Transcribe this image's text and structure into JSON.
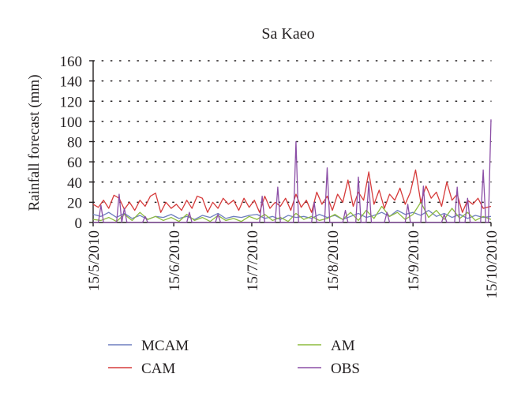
{
  "chart_data": {
    "type": "line",
    "title": "Sa Kaeo",
    "xlabel": "",
    "ylabel": "Rainfall forecast (mm)",
    "ylim": [
      0,
      160
    ],
    "yticks": [
      0,
      20,
      40,
      60,
      80,
      100,
      120,
      140,
      160
    ],
    "xlim": [
      "2010-05-15",
      "2010-10-15"
    ],
    "xticks": [
      {
        "date": "2010-05-15",
        "label": "15/5/2010"
      },
      {
        "date": "2010-06-15",
        "label": "15/6/2010"
      },
      {
        "date": "2010-07-15",
        "label": "15/7/2010"
      },
      {
        "date": "2010-08-15",
        "label": "15/8/2010"
      },
      {
        "date": "2010-09-15",
        "label": "15/9/2010"
      },
      {
        "date": "2010-10-15",
        "label": "15/10/2010"
      }
    ],
    "grid": "horizontal dotted",
    "legend_position": "bottom",
    "series": [
      {
        "name": "MCAM",
        "color": "#6f7fbf",
        "points": [
          [
            "2010-05-15",
            8
          ],
          [
            "2010-05-18",
            6
          ],
          [
            "2010-05-21",
            10
          ],
          [
            "2010-05-24",
            5
          ],
          [
            "2010-05-27",
            9
          ],
          [
            "2010-05-30",
            4
          ],
          [
            "2010-06-02",
            7
          ],
          [
            "2010-06-05",
            3
          ],
          [
            "2010-06-08",
            6
          ],
          [
            "2010-06-11",
            5
          ],
          [
            "2010-06-14",
            8
          ],
          [
            "2010-06-17",
            4
          ],
          [
            "2010-06-20",
            6
          ],
          [
            "2010-06-23",
            3
          ],
          [
            "2010-06-26",
            7
          ],
          [
            "2010-06-29",
            5
          ],
          [
            "2010-07-02",
            9
          ],
          [
            "2010-07-05",
            4
          ],
          [
            "2010-07-08",
            6
          ],
          [
            "2010-07-11",
            5
          ],
          [
            "2010-07-14",
            7
          ],
          [
            "2010-07-17",
            8
          ],
          [
            "2010-07-20",
            4
          ],
          [
            "2010-07-23",
            6
          ],
          [
            "2010-07-26",
            3
          ],
          [
            "2010-07-29",
            7
          ],
          [
            "2010-08-01",
            5
          ],
          [
            "2010-08-04",
            6
          ],
          [
            "2010-08-07",
            4
          ],
          [
            "2010-08-10",
            8
          ],
          [
            "2010-08-13",
            5
          ],
          [
            "2010-08-16",
            7
          ],
          [
            "2010-08-19",
            3
          ],
          [
            "2010-08-22",
            6
          ],
          [
            "2010-08-25",
            9
          ],
          [
            "2010-08-28",
            5
          ],
          [
            "2010-08-31",
            7
          ],
          [
            "2010-09-03",
            10
          ],
          [
            "2010-09-06",
            6
          ],
          [
            "2010-09-09",
            12
          ],
          [
            "2010-09-12",
            8
          ],
          [
            "2010-09-15",
            10
          ],
          [
            "2010-09-18",
            7
          ],
          [
            "2010-09-21",
            12
          ],
          [
            "2010-09-24",
            6
          ],
          [
            "2010-09-27",
            9
          ],
          [
            "2010-09-30",
            5
          ],
          [
            "2010-10-03",
            8
          ],
          [
            "2010-10-06",
            4
          ],
          [
            "2010-10-09",
            7
          ],
          [
            "2010-10-12",
            5
          ],
          [
            "2010-10-15",
            6
          ]
        ]
      },
      {
        "name": "CAM",
        "color": "#d63b3b",
        "points": [
          [
            "2010-05-15",
            18
          ],
          [
            "2010-05-17",
            15
          ],
          [
            "2010-05-19",
            22
          ],
          [
            "2010-05-21",
            14
          ],
          [
            "2010-05-23",
            27
          ],
          [
            "2010-05-25",
            24
          ],
          [
            "2010-05-27",
            13
          ],
          [
            "2010-05-29",
            20
          ],
          [
            "2010-05-31",
            12
          ],
          [
            "2010-06-02",
            22
          ],
          [
            "2010-06-04",
            16
          ],
          [
            "2010-06-06",
            26
          ],
          [
            "2010-06-08",
            29
          ],
          [
            "2010-06-10",
            10
          ],
          [
            "2010-06-12",
            20
          ],
          [
            "2010-06-14",
            14
          ],
          [
            "2010-06-16",
            18
          ],
          [
            "2010-06-18",
            12
          ],
          [
            "2010-06-20",
            22
          ],
          [
            "2010-06-22",
            14
          ],
          [
            "2010-06-24",
            26
          ],
          [
            "2010-06-26",
            24
          ],
          [
            "2010-06-28",
            10
          ],
          [
            "2010-06-30",
            20
          ],
          [
            "2010-07-02",
            14
          ],
          [
            "2010-07-04",
            24
          ],
          [
            "2010-07-06",
            18
          ],
          [
            "2010-07-08",
            22
          ],
          [
            "2010-07-10",
            12
          ],
          [
            "2010-07-12",
            24
          ],
          [
            "2010-07-14",
            15
          ],
          [
            "2010-07-16",
            22
          ],
          [
            "2010-07-18",
            10
          ],
          [
            "2010-07-20",
            26
          ],
          [
            "2010-07-22",
            14
          ],
          [
            "2010-07-24",
            20
          ],
          [
            "2010-07-26",
            16
          ],
          [
            "2010-07-28",
            24
          ],
          [
            "2010-07-30",
            12
          ],
          [
            "2010-08-01",
            28
          ],
          [
            "2010-08-03",
            15
          ],
          [
            "2010-08-05",
            22
          ],
          [
            "2010-08-07",
            10
          ],
          [
            "2010-08-09",
            30
          ],
          [
            "2010-08-11",
            18
          ],
          [
            "2010-08-13",
            26
          ],
          [
            "2010-08-15",
            12
          ],
          [
            "2010-08-17",
            28
          ],
          [
            "2010-08-19",
            20
          ],
          [
            "2010-08-21",
            42
          ],
          [
            "2010-08-23",
            16
          ],
          [
            "2010-08-25",
            30
          ],
          [
            "2010-08-27",
            22
          ],
          [
            "2010-08-29",
            50
          ],
          [
            "2010-08-31",
            18
          ],
          [
            "2010-09-02",
            32
          ],
          [
            "2010-09-04",
            14
          ],
          [
            "2010-09-06",
            28
          ],
          [
            "2010-09-08",
            22
          ],
          [
            "2010-09-10",
            34
          ],
          [
            "2010-09-12",
            18
          ],
          [
            "2010-09-14",
            30
          ],
          [
            "2010-09-16",
            52
          ],
          [
            "2010-09-18",
            20
          ],
          [
            "2010-09-20",
            36
          ],
          [
            "2010-09-22",
            24
          ],
          [
            "2010-09-24",
            30
          ],
          [
            "2010-09-26",
            16
          ],
          [
            "2010-09-28",
            40
          ],
          [
            "2010-09-30",
            22
          ],
          [
            "2010-10-02",
            28
          ],
          [
            "2010-10-04",
            10
          ],
          [
            "2010-10-06",
            22
          ],
          [
            "2010-10-08",
            18
          ],
          [
            "2010-10-10",
            24
          ],
          [
            "2010-10-12",
            14
          ],
          [
            "2010-10-15",
            16
          ]
        ]
      },
      {
        "name": "AM",
        "color": "#8dbb3f",
        "points": [
          [
            "2010-05-15",
            3
          ],
          [
            "2010-05-18",
            2
          ],
          [
            "2010-05-21",
            5
          ],
          [
            "2010-05-24",
            1
          ],
          [
            "2010-05-27",
            8
          ],
          [
            "2010-05-30",
            2
          ],
          [
            "2010-06-02",
            10
          ],
          [
            "2010-06-05",
            3
          ],
          [
            "2010-06-08",
            6
          ],
          [
            "2010-06-11",
            2
          ],
          [
            "2010-06-14",
            5
          ],
          [
            "2010-06-17",
            1
          ],
          [
            "2010-06-20",
            8
          ],
          [
            "2010-06-23",
            2
          ],
          [
            "2010-06-26",
            5
          ],
          [
            "2010-06-29",
            1
          ],
          [
            "2010-07-02",
            7
          ],
          [
            "2010-07-05",
            2
          ],
          [
            "2010-07-08",
            4
          ],
          [
            "2010-07-11",
            1
          ],
          [
            "2010-07-14",
            6
          ],
          [
            "2010-07-17",
            3
          ],
          [
            "2010-07-20",
            8
          ],
          [
            "2010-07-23",
            2
          ],
          [
            "2010-07-26",
            5
          ],
          [
            "2010-07-29",
            1
          ],
          [
            "2010-08-01",
            9
          ],
          [
            "2010-08-04",
            3
          ],
          [
            "2010-08-07",
            6
          ],
          [
            "2010-08-10",
            2
          ],
          [
            "2010-08-13",
            4
          ],
          [
            "2010-08-16",
            8
          ],
          [
            "2010-08-19",
            3
          ],
          [
            "2010-08-22",
            10
          ],
          [
            "2010-08-25",
            2
          ],
          [
            "2010-08-28",
            12
          ],
          [
            "2010-08-31",
            4
          ],
          [
            "2010-09-03",
            16
          ],
          [
            "2010-09-06",
            6
          ],
          [
            "2010-09-09",
            10
          ],
          [
            "2010-09-12",
            3
          ],
          [
            "2010-09-15",
            8
          ],
          [
            "2010-09-18",
            20
          ],
          [
            "2010-09-21",
            5
          ],
          [
            "2010-09-24",
            12
          ],
          [
            "2010-09-27",
            3
          ],
          [
            "2010-09-30",
            14
          ],
          [
            "2010-10-03",
            4
          ],
          [
            "2010-10-06",
            10
          ],
          [
            "2010-10-09",
            2
          ],
          [
            "2010-10-12",
            6
          ],
          [
            "2010-10-15",
            3
          ]
        ]
      },
      {
        "name": "OBS",
        "color": "#8b4ea6",
        "points": [
          [
            "2010-05-15",
            0
          ],
          [
            "2010-05-17",
            0
          ],
          [
            "2010-05-18",
            17
          ],
          [
            "2010-05-19",
            0
          ],
          [
            "2010-05-24",
            0
          ],
          [
            "2010-05-25",
            28
          ],
          [
            "2010-05-26",
            0
          ],
          [
            "2010-05-27",
            14
          ],
          [
            "2010-05-28",
            0
          ],
          [
            "2010-06-03",
            0
          ],
          [
            "2010-06-04",
            6
          ],
          [
            "2010-06-05",
            0
          ],
          [
            "2010-06-20",
            0
          ],
          [
            "2010-06-21",
            10
          ],
          [
            "2010-06-22",
            0
          ],
          [
            "2010-07-01",
            0
          ],
          [
            "2010-07-02",
            8
          ],
          [
            "2010-07-03",
            0
          ],
          [
            "2010-07-18",
            0
          ],
          [
            "2010-07-19",
            26
          ],
          [
            "2010-07-20",
            0
          ],
          [
            "2010-07-24",
            0
          ],
          [
            "2010-07-25",
            35
          ],
          [
            "2010-07-26",
            0
          ],
          [
            "2010-07-31",
            0
          ],
          [
            "2010-08-01",
            80
          ],
          [
            "2010-08-02",
            0
          ],
          [
            "2010-08-07",
            0
          ],
          [
            "2010-08-08",
            20
          ],
          [
            "2010-08-09",
            0
          ],
          [
            "2010-08-12",
            0
          ],
          [
            "2010-08-13",
            54
          ],
          [
            "2010-08-14",
            0
          ],
          [
            "2010-08-19",
            0
          ],
          [
            "2010-08-20",
            12
          ],
          [
            "2010-08-21",
            0
          ],
          [
            "2010-08-24",
            0
          ],
          [
            "2010-08-25",
            45
          ],
          [
            "2010-08-26",
            0
          ],
          [
            "2010-08-28",
            0
          ],
          [
            "2010-08-29",
            40
          ],
          [
            "2010-08-30",
            0
          ],
          [
            "2010-09-04",
            0
          ],
          [
            "2010-09-05",
            10
          ],
          [
            "2010-09-06",
            0
          ],
          [
            "2010-09-12",
            0
          ],
          [
            "2010-09-13",
            18
          ],
          [
            "2010-09-14",
            0
          ],
          [
            "2010-09-18",
            0
          ],
          [
            "2010-09-19",
            36
          ],
          [
            "2010-09-20",
            0
          ],
          [
            "2010-09-26",
            0
          ],
          [
            "2010-09-27",
            8
          ],
          [
            "2010-09-28",
            0
          ],
          [
            "2010-10-01",
            0
          ],
          [
            "2010-10-02",
            35
          ],
          [
            "2010-10-03",
            0
          ],
          [
            "2010-10-05",
            0
          ],
          [
            "2010-10-06",
            24
          ],
          [
            "2010-10-07",
            0
          ],
          [
            "2010-10-11",
            0
          ],
          [
            "2010-10-12",
            52
          ],
          [
            "2010-10-13",
            0
          ],
          [
            "2010-10-14",
            0
          ],
          [
            "2010-10-15",
            102
          ]
        ]
      }
    ]
  }
}
